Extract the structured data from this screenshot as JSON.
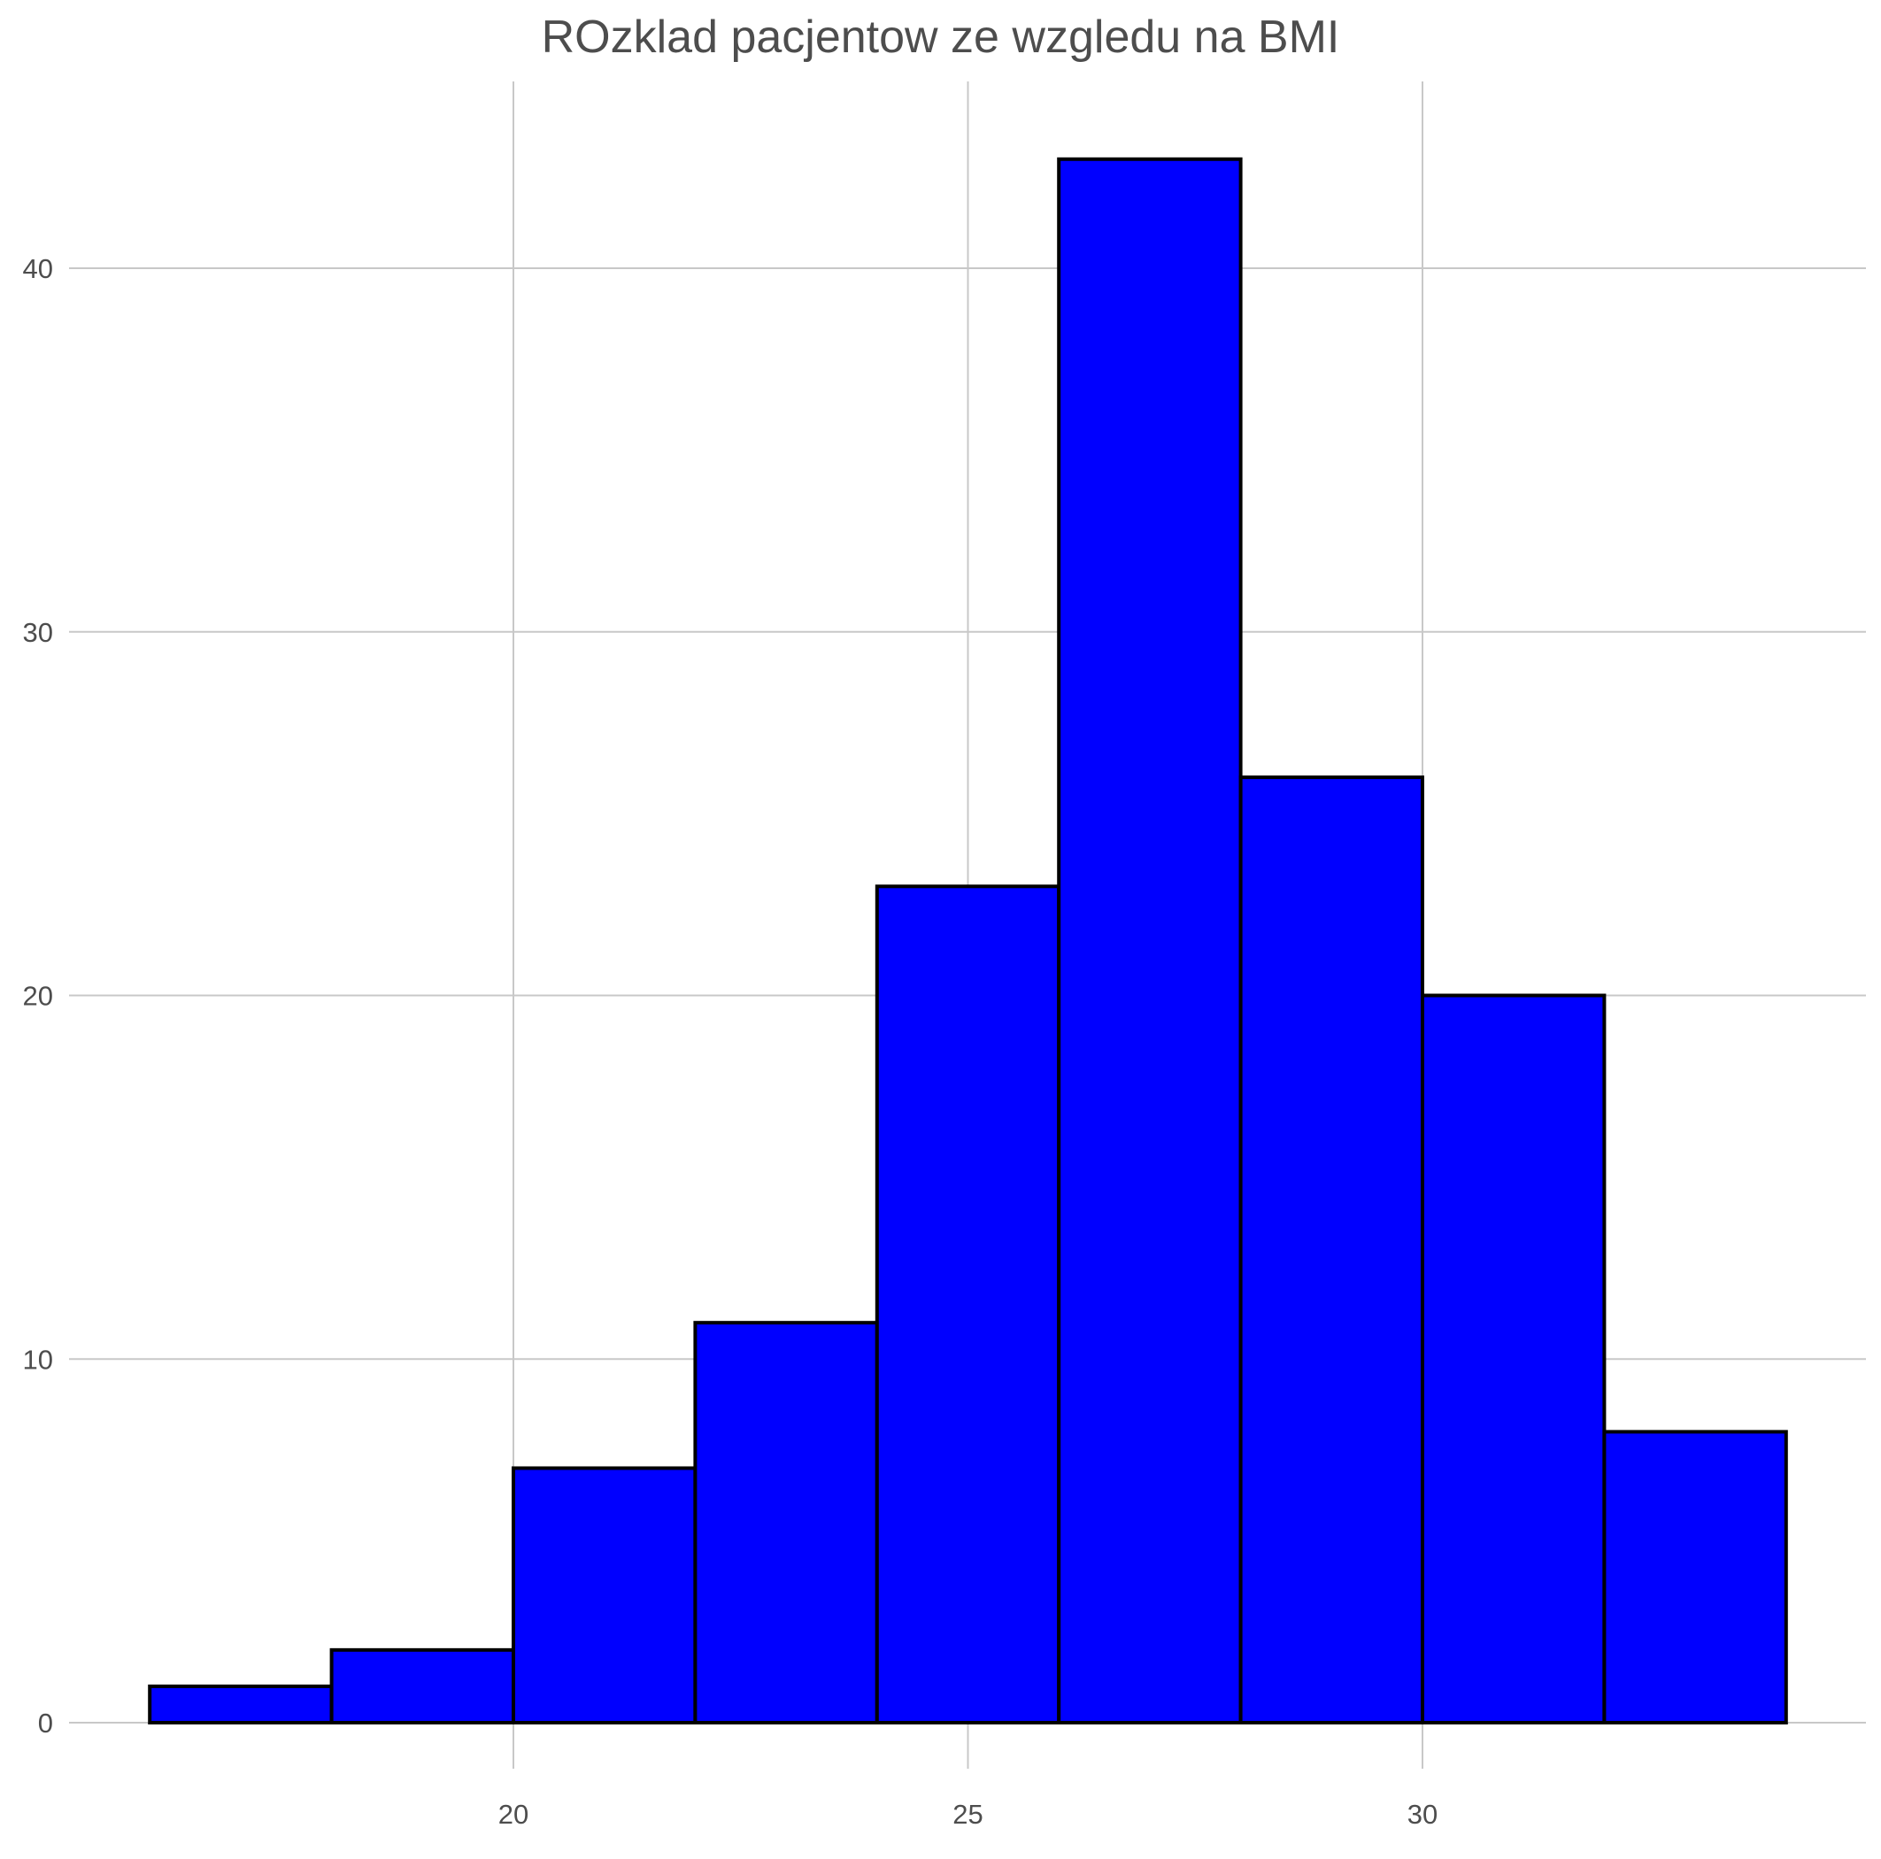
{
  "chart_data": {
    "type": "bar",
    "title": "ROzklad pacjentow ze wzgledu na BMI",
    "xlabel": "",
    "ylabel": "",
    "bins": [
      {
        "x0": 16,
        "x1": 18,
        "count": 1
      },
      {
        "x0": 18,
        "x1": 20,
        "count": 2
      },
      {
        "x0": 20,
        "x1": 22,
        "count": 7
      },
      {
        "x0": 22,
        "x1": 24,
        "count": 11
      },
      {
        "x0": 24,
        "x1": 26,
        "count": 23
      },
      {
        "x0": 26,
        "x1": 28,
        "count": 43
      },
      {
        "x0": 28,
        "x1": 30,
        "count": 26
      },
      {
        "x0": 30,
        "x1": 32,
        "count": 20
      },
      {
        "x0": 32,
        "x1": 34,
        "count": 8
      }
    ],
    "xlim": [
      12,
      35
    ],
    "ylim": [
      -2.1,
      45.2
    ],
    "x_ticks": [
      20,
      25,
      30
    ],
    "y_ticks": [
      0,
      10,
      20,
      30,
      40
    ],
    "grid": true,
    "bar_color": "#0000ff",
    "bar_edge_color": "#000000",
    "legend": "none"
  }
}
